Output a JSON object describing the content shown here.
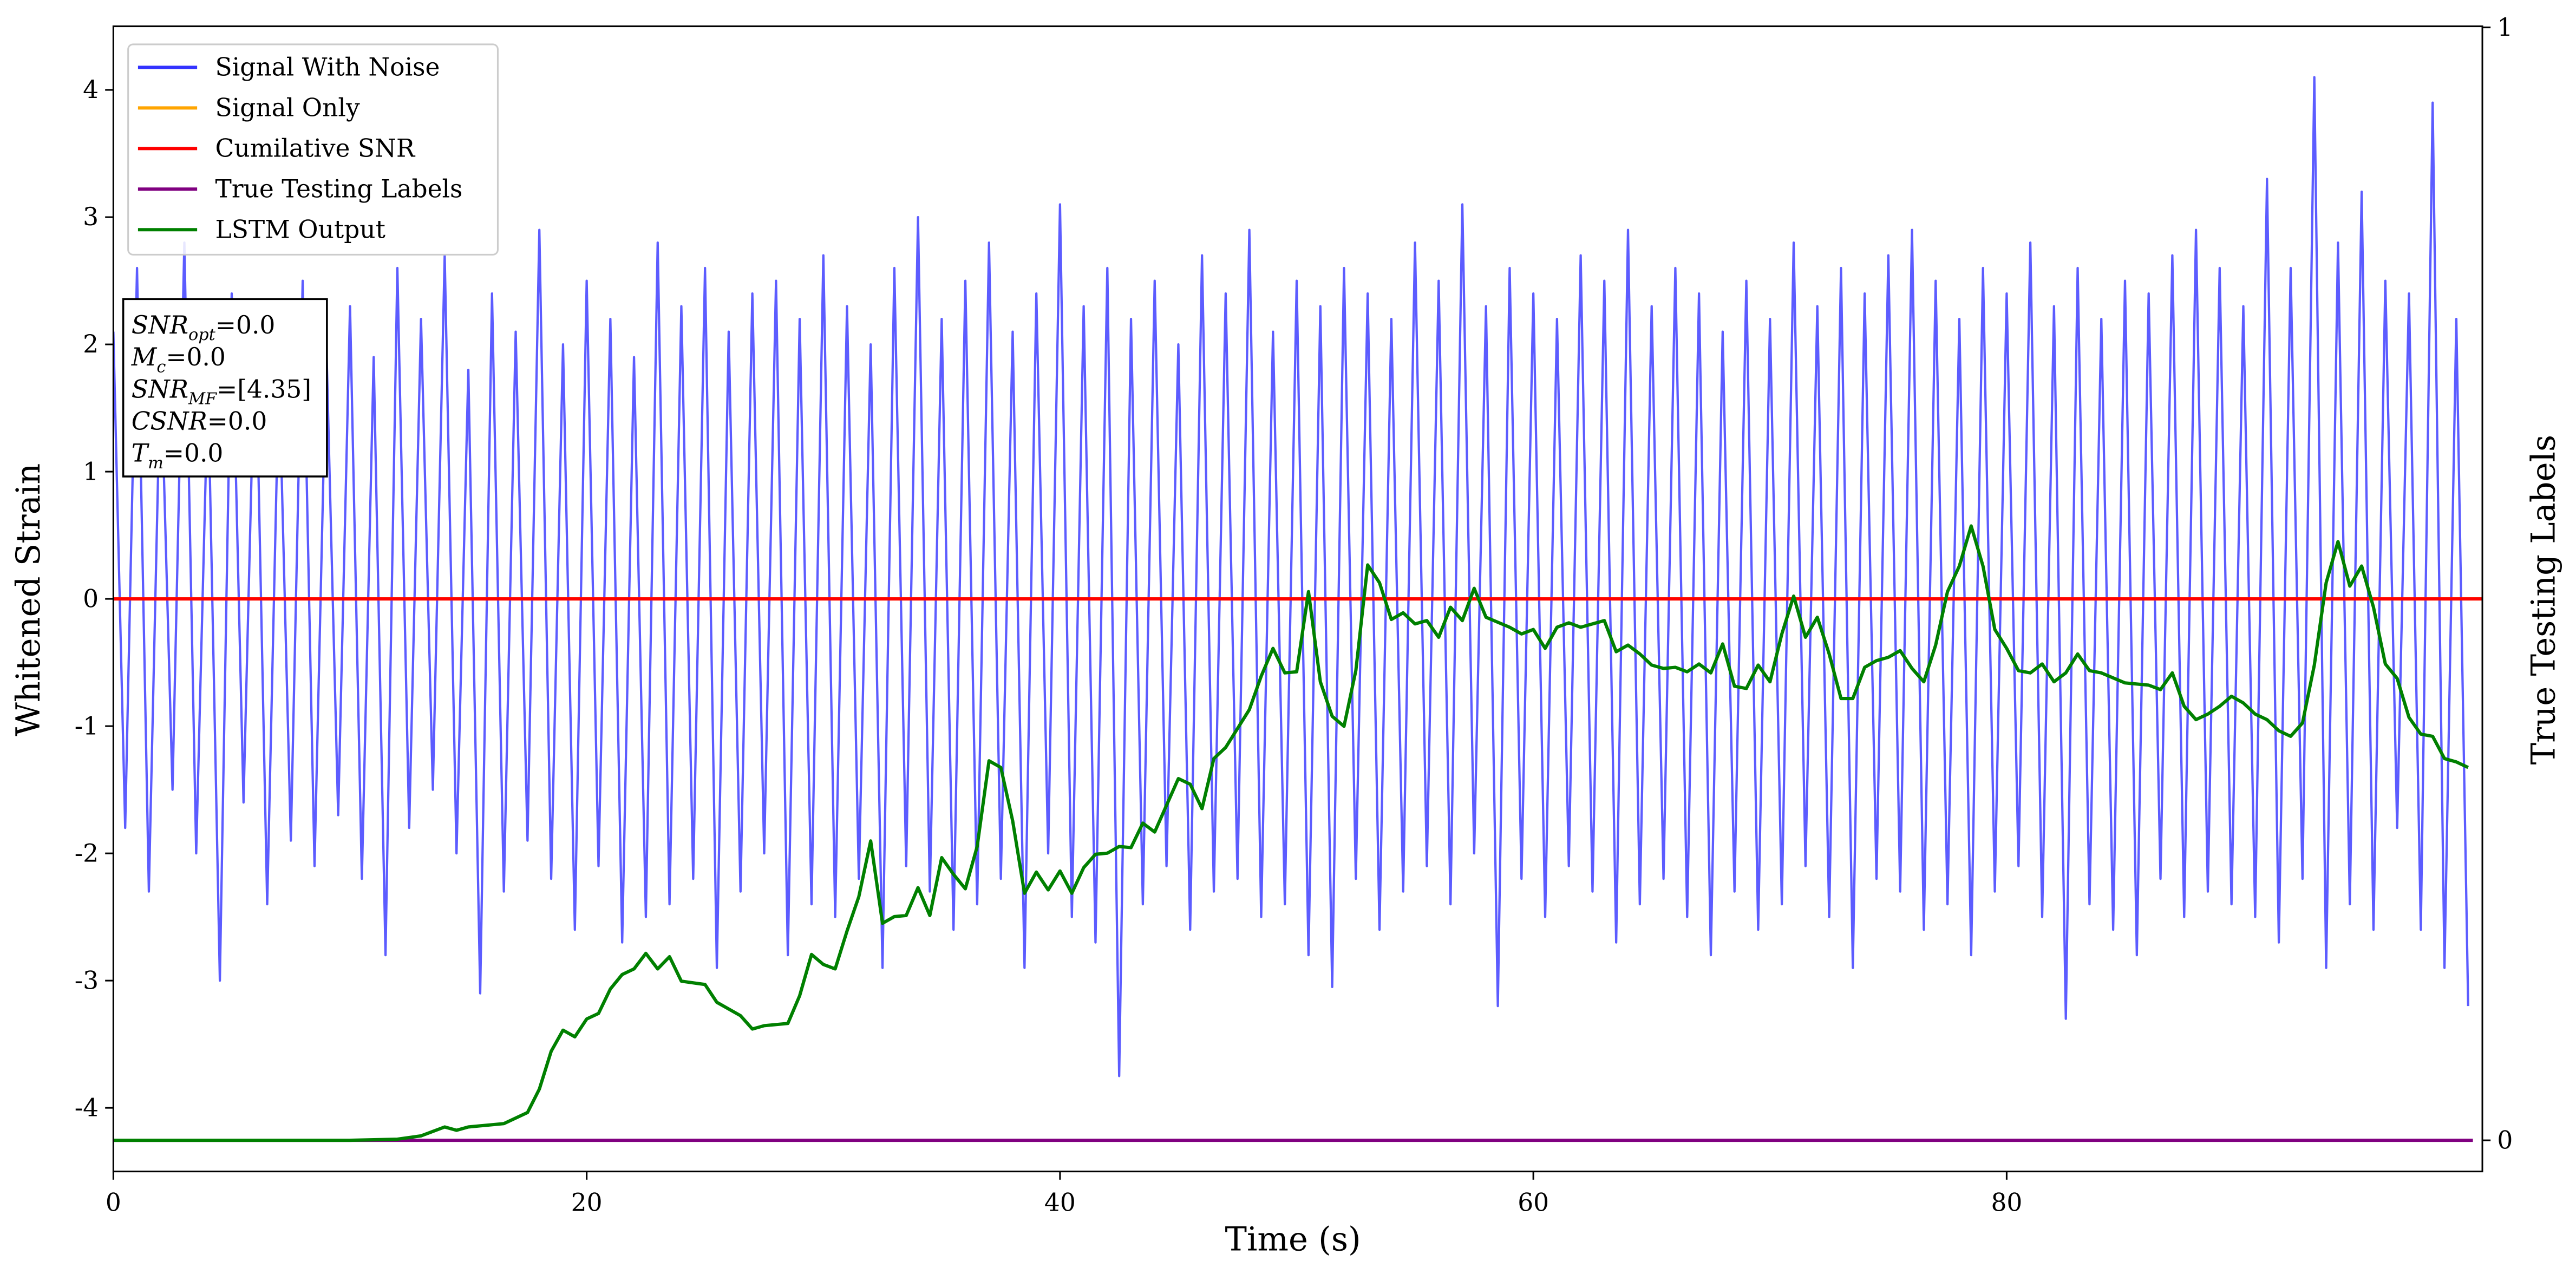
{
  "chart_data": {
    "type": "line",
    "xlabel": "Time (s)",
    "ylabel": "Whitened Strain",
    "y2label": "True Testing Labels",
    "xlim": [
      0,
      100.1
    ],
    "xticks": [
      0,
      20,
      40,
      60,
      80
    ],
    "ylim": [
      -4.5,
      4.5
    ],
    "yticks": [
      -4,
      -3,
      -2,
      -1,
      0,
      1,
      2,
      3,
      4
    ],
    "y2lim": [
      -0.028,
      1.001
    ],
    "y2ticks": [
      0,
      1
    ],
    "legend": "upper left",
    "annotation": [
      {
        "symbol": "SNR",
        "subscript": "opt",
        "text": "=0.0"
      },
      {
        "symbol": "M",
        "subscript": "c",
        "text": "=0.0"
      },
      {
        "symbol": "SNR",
        "subscript": "MF",
        "text": "=[4.35]"
      },
      {
        "symbol": "CSNR",
        "subscript": "",
        "text": "=0.0"
      },
      {
        "symbol": "T",
        "subscript": "m",
        "text": "=0.0"
      }
    ],
    "series": [
      {
        "name": "Signal With Noise",
        "color": "#3333ff",
        "axis": "y",
        "x": [
          0,
          0.5,
          1,
          1.5,
          2,
          2.5,
          3,
          3.5,
          4,
          4.5,
          5,
          5.5,
          6,
          6.5,
          7,
          7.5,
          8,
          8.5,
          9,
          9.5,
          10,
          10.5,
          11,
          11.5,
          12,
          12.5,
          13,
          13.5,
          14,
          14.5,
          15,
          15.5,
          16,
          16.5,
          17,
          17.5,
          18,
          18.5,
          19,
          19.5,
          20,
          20.5,
          21,
          21.5,
          22,
          22.5,
          23,
          23.5,
          24,
          24.5,
          25,
          25.5,
          26,
          26.5,
          27,
          27.5,
          28,
          28.5,
          29,
          29.5,
          30,
          30.5,
          31,
          31.5,
          32,
          32.5,
          33,
          33.5,
          34,
          34.5,
          35,
          35.5,
          36,
          36.5,
          37,
          37.5,
          38,
          38.5,
          39,
          39.5,
          40,
          40.5,
          41,
          41.5,
          42,
          42.5,
          43,
          43.5,
          44,
          44.5,
          45,
          45.5,
          46,
          46.5,
          47,
          47.5,
          48,
          48.5,
          49,
          49.5,
          50,
          50.5,
          51,
          51.5,
          52,
          52.5,
          53,
          53.5,
          54,
          54.5,
          55,
          55.5,
          56,
          56.5,
          57,
          57.5,
          58,
          58.5,
          59,
          59.5,
          60,
          60.5,
          61,
          61.5,
          62,
          62.5,
          63,
          63.5,
          64,
          64.5,
          65,
          65.5,
          66,
          66.5,
          67,
          67.5,
          68,
          68.5,
          69,
          69.5,
          70,
          70.5,
          71,
          71.5,
          72,
          72.5,
          73,
          73.5,
          74,
          74.5,
          75,
          75.5,
          76,
          76.5,
          77,
          77.5,
          78,
          78.5,
          79,
          79.5,
          80,
          80.5,
          81,
          81.5,
          82,
          82.5,
          83,
          83.5,
          84,
          84.5,
          85,
          85.5,
          86,
          86.5,
          87,
          87.5,
          88,
          88.5,
          89,
          89.5,
          90,
          90.5,
          91,
          91.5,
          92,
          92.5,
          93,
          93.5,
          94,
          94.5,
          95,
          95.5,
          96,
          96.5,
          97,
          97.5,
          98,
          98.5,
          99,
          99.5
        ],
        "values": [
          2.1,
          -1.8,
          2.6,
          -2.3,
          1.9,
          -1.5,
          2.8,
          -2.0,
          1.7,
          -3.0,
          2.4,
          -1.6,
          2.2,
          -2.4,
          1.8,
          -1.9,
          2.5,
          -2.1,
          2.0,
          -1.7,
          2.3,
          -2.2,
          1.9,
          -2.8,
          2.6,
          -1.8,
          2.2,
          -1.5,
          2.7,
          -2.0,
          1.8,
          -3.1,
          2.4,
          -2.3,
          2.1,
          -1.9,
          2.9,
          -2.2,
          2.0,
          -2.6,
          2.5,
          -2.1,
          2.2,
          -2.7,
          1.9,
          -2.5,
          2.8,
          -2.4,
          2.3,
          -2.2,
          2.6,
          -2.9,
          2.1,
          -2.3,
          2.4,
          -2.0,
          2.5,
          -2.8,
          2.2,
          -2.4,
          2.7,
          -2.5,
          2.3,
          -2.2,
          2.0,
          -2.9,
          2.6,
          -2.1,
          3.0,
          -2.3,
          2.2,
          -2.6,
          2.5,
          -2.4,
          2.8,
          -2.2,
          2.1,
          -2.9,
          2.4,
          -2.0,
          3.1,
          -2.5,
          2.3,
          -2.7,
          2.6,
          -3.75,
          2.2,
          -2.4,
          2.5,
          -2.1,
          2.0,
          -2.6,
          2.7,
          -2.3,
          2.4,
          -2.2,
          2.9,
          -2.5,
          2.1,
          -2.4,
          2.5,
          -2.8,
          2.3,
          -3.05,
          2.6,
          -2.2,
          2.4,
          -2.6,
          2.2,
          -2.3,
          2.8,
          -2.1,
          2.5,
          -2.4,
          3.1,
          -2.0,
          2.3,
          -3.2,
          2.6,
          -2.2,
          2.4,
          -2.5,
          2.2,
          -2.1,
          2.7,
          -2.3,
          2.5,
          -2.7,
          2.9,
          -2.4,
          2.3,
          -2.2,
          2.6,
          -2.5,
          2.4,
          -2.8,
          2.1,
          -2.3,
          2.5,
          -2.6,
          2.2,
          -2.4,
          2.8,
          -2.1,
          2.3,
          -2.5,
          2.6,
          -2.9,
          2.4,
          -2.2,
          2.7,
          -2.3,
          2.9,
          -2.6,
          2.5,
          -2.4,
          2.2,
          -2.8,
          2.6,
          -2.3,
          2.4,
          -2.1,
          2.8,
          -2.5,
          2.3,
          -3.3,
          2.6,
          -2.4,
          2.2,
          -2.6,
          2.5,
          -2.8,
          2.4,
          -2.2,
          2.7,
          -2.5,
          2.9,
          -2.3,
          2.6,
          -2.4,
          2.3,
          -2.5,
          3.3,
          -2.7,
          2.6,
          -2.2,
          4.1,
          -2.9,
          2.8,
          -2.4,
          3.2,
          -2.6,
          2.5,
          -1.8,
          2.4,
          -2.6,
          3.9,
          -2.9,
          2.2,
          -3.2
        ]
      },
      {
        "name": "Signal Only",
        "color": "#ffa500",
        "axis": "y",
        "x": [
          0,
          100.1
        ],
        "values": [
          0,
          0
        ]
      },
      {
        "name": "Cumilative SNR",
        "color": "#ff0000",
        "axis": "y",
        "x": [
          0,
          100.1
        ],
        "values": [
          0,
          0
        ]
      },
      {
        "name": "True Testing Labels",
        "color": "#800080",
        "axis": "y2",
        "x": [
          0,
          99.7
        ],
        "values": [
          0,
          0
        ]
      },
      {
        "name": "LSTM Output",
        "color": "#008000",
        "axis": "y2",
        "x": [
          0,
          10,
          12,
          13,
          14,
          14.5,
          15,
          16.5,
          17.5,
          18,
          18.5,
          19,
          19.5,
          20,
          20.5,
          21,
          21.5,
          22,
          22.5,
          23,
          23.5,
          24,
          25,
          25.5,
          26.5,
          27,
          27.5,
          28.5,
          29,
          29.5,
          30,
          30.5,
          31,
          31.5,
          32,
          32.5,
          33,
          33.5,
          34,
          34.5,
          35,
          35.5,
          36,
          36.5,
          37,
          37.5,
          38,
          38.5,
          39,
          39.5,
          40,
          40.5,
          41,
          41.5,
          42,
          42.5,
          43,
          43.5,
          44,
          44.5,
          45,
          45.5,
          46,
          46.5,
          47,
          48,
          48.5,
          49,
          49.5,
          50,
          50.5,
          51,
          51.5,
          52,
          52.5,
          53,
          53.5,
          54,
          54.5,
          55,
          55.5,
          56,
          56.5,
          57,
          57.5,
          58,
          59,
          59.5,
          60,
          60.5,
          61,
          61.5,
          62,
          62.5,
          63,
          63.5,
          64,
          64.5,
          65,
          65.5,
          66,
          66.5,
          67,
          67.5,
          68,
          68.5,
          69,
          69.5,
          70,
          70.5,
          71,
          71.5,
          72,
          72.5,
          73,
          73.5,
          74,
          74.5,
          75,
          75.5,
          76,
          76.5,
          77,
          77.5,
          78,
          78.5,
          79,
          79.5,
          80,
          80.5,
          81,
          81.5,
          82,
          82.5,
          83,
          83.5,
          84,
          85,
          86,
          86.5,
          87,
          87.5,
          88,
          88.5,
          89,
          89.5,
          90,
          90.5,
          91,
          91.5,
          92,
          92.5,
          93,
          93.5,
          94,
          94.5,
          95,
          95.5,
          96,
          96.5,
          97,
          97.5,
          98,
          98.5,
          99,
          99.5
        ],
        "values": [
          0,
          0,
          0.001,
          0.004,
          0.012,
          0.009,
          0.012,
          0.015,
          0.025,
          0.046,
          0.08,
          0.099,
          0.093,
          0.109,
          0.114,
          0.136,
          0.149,
          0.154,
          0.168,
          0.154,
          0.165,
          0.143,
          0.14,
          0.124,
          0.112,
          0.1,
          0.103,
          0.105,
          0.13,
          0.167,
          0.158,
          0.154,
          0.188,
          0.219,
          0.269,
          0.195,
          0.201,
          0.202,
          0.227,
          0.202,
          0.254,
          0.239,
          0.226,
          0.264,
          0.341,
          0.335,
          0.287,
          0.222,
          0.241,
          0.225,
          0.242,
          0.222,
          0.245,
          0.257,
          0.258,
          0.264,
          0.263,
          0.285,
          0.277,
          0.301,
          0.325,
          0.32,
          0.298,
          0.343,
          0.353,
          0.387,
          0.417,
          0.442,
          0.42,
          0.421,
          0.493,
          0.412,
          0.381,
          0.372,
          0.422,
          0.517,
          0.501,
          0.468,
          0.474,
          0.464,
          0.467,
          0.452,
          0.479,
          0.467,
          0.496,
          0.47,
          0.461,
          0.455,
          0.459,
          0.442,
          0.461,
          0.465,
          0.461,
          0.464,
          0.467,
          0.439,
          0.445,
          0.437,
          0.427,
          0.424,
          0.425,
          0.421,
          0.428,
          0.42,
          0.446,
          0.408,
          0.406,
          0.427,
          0.412,
          0.455,
          0.489,
          0.452,
          0.47,
          0.437,
          0.397,
          0.397,
          0.425,
          0.431,
          0.434,
          0.44,
          0.424,
          0.412,
          0.445,
          0.493,
          0.516,
          0.552,
          0.516,
          0.459,
          0.442,
          0.422,
          0.42,
          0.428,
          0.412,
          0.42,
          0.437,
          0.422,
          0.42,
          0.411,
          0.409,
          0.405,
          0.42,
          0.39,
          0.378,
          0.383,
          0.39,
          0.399,
          0.393,
          0.383,
          0.378,
          0.368,
          0.363,
          0.375,
          0.427,
          0.501,
          0.538,
          0.498,
          0.516,
          0.479,
          0.428,
          0.415,
          0.38,
          0.365,
          0.363,
          0.343,
          0.34,
          0.335
        ]
      }
    ]
  }
}
